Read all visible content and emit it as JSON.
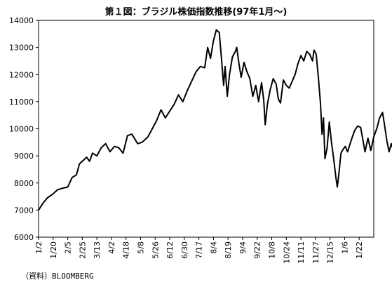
{
  "chart_data": {
    "type": "line",
    "title": "第１図：ブラジル株価指数推移(97年1月〜)",
    "xlabel": "",
    "ylabel": "",
    "ylim": [
      6000,
      14000
    ],
    "yticks": [
      6000,
      7000,
      8000,
      9000,
      10000,
      11000,
      12000,
      13000,
      14000
    ],
    "grid": false,
    "legend": "none",
    "x_ticks": [
      "1/2",
      "1/20",
      "2/5",
      "2/25",
      "3/13",
      "4/2",
      "4/18",
      "5/8",
      "5/26",
      "6/12",
      "6/30",
      "7/17",
      "8/4",
      "8/19",
      "9/4",
      "9/22",
      "10/8",
      "10/24",
      "11/11",
      "11/27",
      "12/15",
      "1/6",
      "1/22"
    ],
    "series": [
      {
        "values": [
          [
            0,
            7000
          ],
          [
            0.3,
            7250
          ],
          [
            0.6,
            7450
          ],
          [
            1,
            7600
          ],
          [
            1.3,
            7750
          ],
          [
            1.6,
            7800
          ],
          [
            2,
            7850
          ],
          [
            2.3,
            8200
          ],
          [
            2.6,
            8300
          ],
          [
            2.8,
            8700
          ],
          [
            3,
            8800
          ],
          [
            3.3,
            8950
          ],
          [
            3.5,
            8800
          ],
          [
            3.7,
            9100
          ],
          [
            4,
            9000
          ],
          [
            4.3,
            9300
          ],
          [
            4.6,
            9450
          ],
          [
            4.9,
            9150
          ],
          [
            5.2,
            9350
          ],
          [
            5.5,
            9300
          ],
          [
            5.8,
            9100
          ],
          [
            6.1,
            9750
          ],
          [
            6.4,
            9800
          ],
          [
            6.8,
            9450
          ],
          [
            7.1,
            9500
          ],
          [
            7.5,
            9700
          ],
          [
            7.8,
            10000
          ],
          [
            8.1,
            10300
          ],
          [
            8.4,
            10700
          ],
          [
            8.7,
            10400
          ],
          [
            9,
            10650
          ],
          [
            9.3,
            10900
          ],
          [
            9.6,
            11250
          ],
          [
            9.9,
            11000
          ],
          [
            10.2,
            11400
          ],
          [
            10.5,
            11750
          ],
          [
            10.8,
            12100
          ],
          [
            11.1,
            12300
          ],
          [
            11.4,
            12250
          ],
          [
            11.6,
            13000
          ],
          [
            11.8,
            12600
          ],
          [
            12,
            13250
          ],
          [
            12.2,
            13650
          ],
          [
            12.4,
            13550
          ],
          [
            12.55,
            12600
          ],
          [
            12.7,
            11600
          ],
          [
            12.8,
            12300
          ],
          [
            12.95,
            11200
          ],
          [
            13.1,
            12000
          ],
          [
            13.3,
            12650
          ],
          [
            13.5,
            12850
          ],
          [
            13.6,
            13000
          ],
          [
            13.75,
            12400
          ],
          [
            13.9,
            11900
          ],
          [
            14.1,
            12450
          ],
          [
            14.3,
            12100
          ],
          [
            14.5,
            11850
          ],
          [
            14.7,
            11200
          ],
          [
            14.9,
            11600
          ],
          [
            15.1,
            11000
          ],
          [
            15.3,
            11700
          ],
          [
            15.45,
            11050
          ],
          [
            15.55,
            10150
          ],
          [
            15.7,
            10900
          ],
          [
            15.9,
            11450
          ],
          [
            16.1,
            11850
          ],
          [
            16.3,
            11650
          ],
          [
            16.45,
            11100
          ],
          [
            16.6,
            10950
          ],
          [
            16.8,
            11800
          ],
          [
            17,
            11600
          ],
          [
            17.2,
            11500
          ],
          [
            17.4,
            11750
          ],
          [
            17.6,
            12000
          ],
          [
            17.8,
            12400
          ],
          [
            18,
            12700
          ],
          [
            18.2,
            12500
          ],
          [
            18.4,
            12850
          ],
          [
            18.6,
            12750
          ],
          [
            18.8,
            12500
          ],
          [
            18.9,
            12900
          ],
          [
            19.05,
            12750
          ],
          [
            19.2,
            11900
          ],
          [
            19.35,
            10900
          ],
          [
            19.45,
            9800
          ],
          [
            19.55,
            10400
          ],
          [
            19.65,
            8900
          ],
          [
            19.8,
            9300
          ],
          [
            19.95,
            10250
          ],
          [
            20.1,
            9500
          ],
          [
            20.25,
            8900
          ],
          [
            20.4,
            8200
          ],
          [
            20.5,
            7850
          ],
          [
            20.6,
            8300
          ],
          [
            20.75,
            9100
          ],
          [
            20.9,
            9250
          ],
          [
            21.05,
            9350
          ],
          [
            21.2,
            9150
          ],
          [
            21.35,
            9400
          ],
          [
            21.5,
            9650
          ],
          [
            21.7,
            9950
          ],
          [
            21.9,
            10100
          ],
          [
            22.1,
            10050
          ],
          [
            22.25,
            9600
          ],
          [
            22.4,
            9150
          ],
          [
            22.6,
            9650
          ],
          [
            22.8,
            9200
          ],
          [
            23,
            9700
          ],
          [
            23.2,
            10000
          ],
          [
            23.4,
            10400
          ],
          [
            23.6,
            10600
          ],
          [
            23.75,
            10100
          ],
          [
            23.9,
            9550
          ],
          [
            24.05,
            9150
          ],
          [
            24.2,
            9450
          ],
          [
            24.35,
            9200
          ],
          [
            24.5,
            9550
          ],
          [
            24.7,
            9700
          ],
          [
            24.9,
            9600
          ],
          [
            25.05,
            9500
          ],
          [
            25.2,
            9700
          ],
          [
            25.4,
            9800
          ],
          [
            25.6,
            9900
          ],
          [
            25.75,
            10050
          ],
          [
            25.9,
            9900
          ]
        ]
      }
    ]
  },
  "source": "（資料）BLOOMBERG"
}
